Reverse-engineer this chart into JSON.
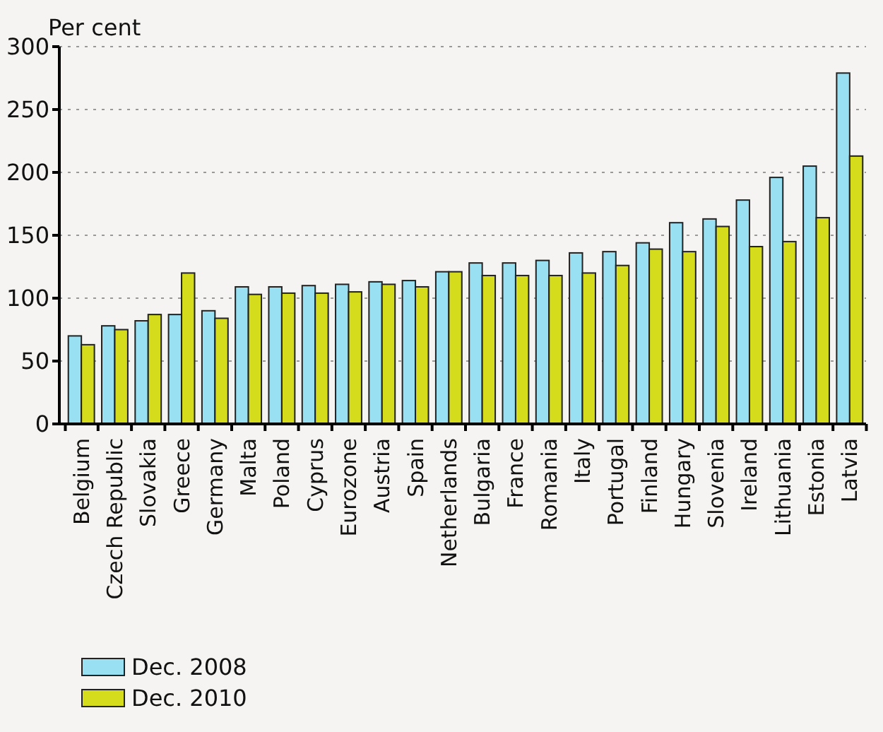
{
  "chart_data": {
    "type": "bar",
    "ylabel": "Per cent",
    "categories": [
      "Belgium",
      "Czech Republic",
      "Slovakia",
      "Greece",
      "Germany",
      "Malta",
      "Poland",
      "Cyprus",
      "Eurozone",
      "Austria",
      "Spain",
      "Netherlands",
      "Bulgaria",
      "France",
      "Romania",
      "Italy",
      "Portugal",
      "Finland",
      "Hungary",
      "Slovenia",
      "Ireland",
      "Lithuania",
      "Estonia",
      "Latvia"
    ],
    "series": [
      {
        "name": "Dec. 2008",
        "color": "#99e0f2",
        "values": [
          70,
          78,
          82,
          87,
          90,
          109,
          109,
          110,
          111,
          113,
          114,
          121,
          128,
          128,
          130,
          136,
          137,
          144,
          160,
          163,
          178,
          196,
          205,
          279
        ]
      },
      {
        "name": "Dec. 2010",
        "color": "#d4dc1c",
        "values": [
          63,
          75,
          87,
          120,
          84,
          103,
          104,
          104,
          105,
          111,
          109,
          121,
          118,
          118,
          118,
          120,
          126,
          139,
          137,
          157,
          141,
          145,
          164,
          213
        ]
      }
    ],
    "ylim": [
      0,
      300
    ],
    "yticks": [
      0,
      50,
      100,
      150,
      200,
      250,
      300
    ],
    "grid": "y",
    "legend": "bottom left"
  }
}
